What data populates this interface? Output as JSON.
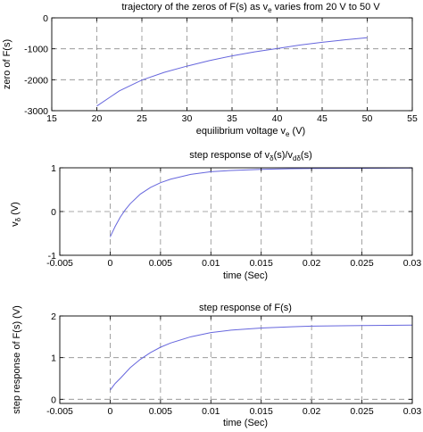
{
  "chart_data": [
    {
      "type": "line",
      "title_prefix": "trajectory of the zeros of F(s) as v",
      "title_sub": "e",
      "title_suffix": " varies from 20 V to 50 V",
      "xlabel_prefix": "equilibrium voltage v",
      "xlabel_sub": "e",
      "xlabel_suffix": " (V)",
      "ylabel": "zero of F(s)",
      "xlim": [
        15,
        55
      ],
      "ylim": [
        -3000,
        0
      ],
      "xticks": [
        15,
        20,
        25,
        30,
        35,
        40,
        45,
        50,
        55
      ],
      "xtick_labels": [
        "15",
        "20",
        "25",
        "30",
        "35",
        "40",
        "45",
        "50",
        "55"
      ],
      "yticks": [
        -3000,
        -2000,
        -1000,
        0
      ],
      "ytick_labels": [
        "-3000",
        "-2000",
        "-1000",
        "0"
      ],
      "grid": true,
      "series": [
        {
          "x": [
            20,
            22.5,
            25,
            27.5,
            30,
            32.5,
            35,
            37.5,
            40,
            42.5,
            45,
            47.5,
            50
          ],
          "y": [
            -2850,
            -2360,
            -2010,
            -1760,
            -1560,
            -1380,
            -1230,
            -1100,
            -990,
            -880,
            -790,
            -710,
            -640
          ]
        }
      ]
    },
    {
      "type": "line",
      "title_prefix": "step response of v",
      "title_sub": "δ",
      "title_mid": "(s)/v",
      "title_sub2": "dδ",
      "title_suffix": "(s)",
      "xlabel": "time (Sec)",
      "ylabel_prefix": "v",
      "ylabel_sub": "δ",
      "ylabel_suffix": " (V)",
      "xlim": [
        -0.005,
        0.03
      ],
      "ylim": [
        -1,
        1
      ],
      "xticks": [
        -0.005,
        0,
        0.005,
        0.01,
        0.015,
        0.02,
        0.025,
        0.03
      ],
      "xtick_labels": [
        "-0.005",
        "0",
        "0.005",
        "0.01",
        "0.015",
        "0.02",
        "0.025",
        "0.03"
      ],
      "yticks": [
        -1,
        0,
        1
      ],
      "ytick_labels": [
        "-1",
        "0",
        "1"
      ],
      "grid": true,
      "series": [
        {
          "x": [
            0,
            0.0005,
            0.001,
            0.0015,
            0.002,
            0.003,
            0.004,
            0.005,
            0.006,
            0.008,
            0.01,
            0.012,
            0.015,
            0.018,
            0.02,
            0.025,
            0.03
          ],
          "y": [
            -0.58,
            -0.34,
            -0.13,
            0.04,
            0.18,
            0.4,
            0.55,
            0.66,
            0.74,
            0.85,
            0.91,
            0.94,
            0.965,
            0.98,
            0.985,
            0.99,
            0.995
          ]
        }
      ]
    },
    {
      "type": "line",
      "title": "step response of F(s)",
      "xlabel": "time (Sec)",
      "ylabel": "step response of F(s) (V)",
      "xlim": [
        -0.005,
        0.03
      ],
      "ylim": [
        -0.1,
        2
      ],
      "xticks": [
        -0.005,
        0,
        0.005,
        0.01,
        0.015,
        0.02,
        0.025,
        0.03
      ],
      "xtick_labels": [
        "-0.005",
        "0",
        "0.005",
        "0.01",
        "0.015",
        "0.02",
        "0.025",
        "0.03"
      ],
      "yticks": [
        0,
        1,
        2
      ],
      "ytick_labels": [
        "0",
        "1",
        "2"
      ],
      "grid": true,
      "series": [
        {
          "x": [
            0,
            0.0005,
            0.001,
            0.002,
            0.003,
            0.004,
            0.005,
            0.006,
            0.008,
            0.01,
            0.012,
            0.015,
            0.018,
            0.02,
            0.025,
            0.03
          ],
          "y": [
            0.22,
            0.38,
            0.5,
            0.76,
            0.96,
            1.12,
            1.25,
            1.35,
            1.5,
            1.6,
            1.66,
            1.71,
            1.74,
            1.755,
            1.77,
            1.78
          ]
        }
      ]
    }
  ]
}
